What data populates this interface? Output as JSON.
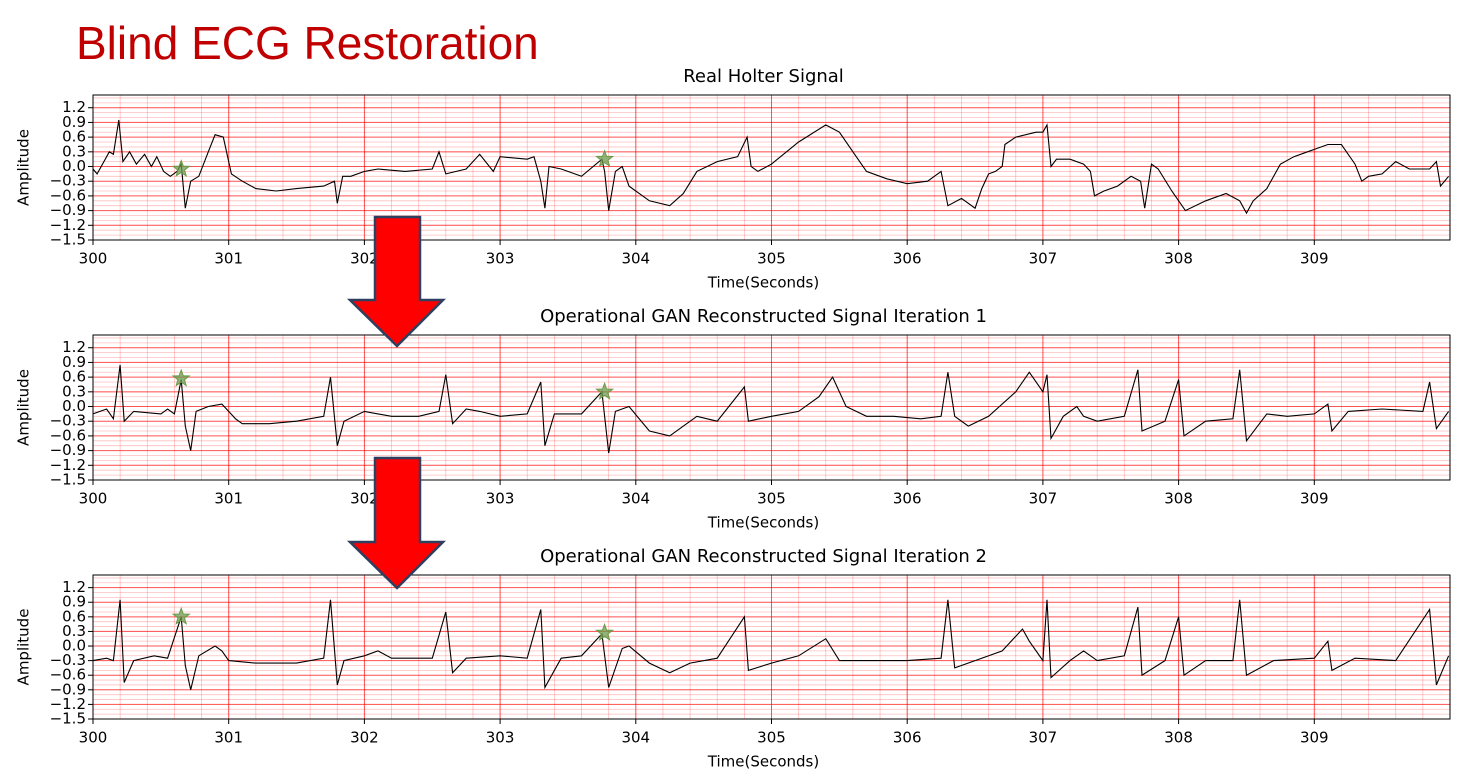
{
  "title": "Blind ECG Restoration",
  "chart_data": [
    {
      "type": "line",
      "title": "Real Holter Signal",
      "xlabel": "Time(Seconds)",
      "ylabel": "Amplitude",
      "xlim": [
        300,
        310
      ],
      "ylim": [
        -1.5,
        1.46
      ],
      "grid": true,
      "grid_color": "#ff0000",
      "xticks": [
        300,
        301,
        302,
        303,
        304,
        305,
        306,
        307,
        308,
        309
      ],
      "yticks": [
        {
          "value": -1.5,
          "label": "−1.5"
        },
        {
          "value": -1.2,
          "label": "−1.2"
        },
        {
          "value": -0.9,
          "label": "−0.9"
        },
        {
          "value": -0.6,
          "label": "−0.6"
        },
        {
          "value": -0.3,
          "label": "−0.3"
        },
        {
          "value": 0,
          "label": "0.0"
        },
        0.3,
        0.6,
        0.9,
        1.2
      ],
      "x": [
        300.0,
        300.03,
        300.08,
        300.12,
        300.15,
        300.19,
        300.22,
        300.27,
        300.32,
        300.38,
        300.43,
        300.47,
        300.52,
        300.57,
        300.62,
        300.65,
        300.68,
        300.72,
        300.78,
        300.85,
        300.9,
        300.96,
        301.02,
        301.1,
        301.2,
        301.35,
        301.5,
        301.7,
        301.78,
        301.8,
        301.84,
        301.9,
        302.0,
        302.1,
        302.3,
        302.5,
        302.55,
        302.6,
        302.75,
        302.85,
        302.95,
        303.0,
        303.2,
        303.25,
        303.3,
        303.33,
        303.36,
        303.45,
        303.6,
        303.75,
        303.77,
        303.8,
        303.85,
        303.9,
        303.95,
        304.1,
        304.25,
        304.35,
        304.45,
        304.6,
        304.75,
        304.82,
        304.85,
        304.9,
        305.0,
        305.2,
        305.4,
        305.5,
        305.6,
        305.7,
        305.85,
        306.0,
        306.15,
        306.25,
        306.3,
        306.4,
        306.5,
        306.55,
        306.6,
        306.65,
        306.7,
        306.72,
        306.8,
        306.95,
        307.0,
        307.03,
        307.06,
        307.1,
        307.2,
        307.3,
        307.35,
        307.38,
        307.45,
        307.55,
        307.65,
        307.72,
        307.75,
        307.8,
        307.85,
        307.95,
        308.05,
        308.2,
        308.35,
        308.45,
        308.5,
        308.55,
        308.65,
        308.75,
        308.85,
        308.95,
        309.0,
        309.1,
        309.2,
        309.3,
        309.35,
        309.4,
        309.5,
        309.6,
        309.7,
        309.85,
        309.9,
        309.93,
        309.99
      ],
      "series": [
        {
          "color": "#000000",
          "values": [
            -0.05,
            -0.15,
            0.1,
            0.3,
            0.25,
            0.95,
            0.1,
            0.3,
            0.05,
            0.25,
            0.0,
            0.2,
            -0.1,
            -0.2,
            -0.1,
            0.05,
            -0.85,
            -0.3,
            -0.2,
            0.3,
            0.65,
            0.6,
            -0.15,
            -0.3,
            -0.45,
            -0.5,
            -0.45,
            -0.4,
            -0.3,
            -0.75,
            -0.2,
            -0.2,
            -0.1,
            -0.05,
            -0.1,
            -0.05,
            0.3,
            -0.15,
            -0.05,
            0.25,
            -0.1,
            0.2,
            0.15,
            0.2,
            -0.3,
            -0.85,
            0.0,
            -0.05,
            -0.2,
            0.15,
            -0.1,
            -0.9,
            -0.1,
            0.0,
            -0.4,
            -0.7,
            -0.8,
            -0.55,
            -0.1,
            0.1,
            0.2,
            0.6,
            0.0,
            -0.1,
            0.05,
            0.5,
            0.85,
            0.7,
            0.3,
            -0.1,
            -0.25,
            -0.35,
            -0.3,
            -0.1,
            -0.8,
            -0.65,
            -0.85,
            -0.45,
            -0.15,
            -0.1,
            0.0,
            0.45,
            0.6,
            0.7,
            0.7,
            0.85,
            0.0,
            0.15,
            0.15,
            0.05,
            -0.1,
            -0.6,
            -0.5,
            -0.4,
            -0.2,
            -0.3,
            -0.85,
            0.05,
            -0.05,
            -0.5,
            -0.9,
            -0.7,
            -0.55,
            -0.7,
            -0.95,
            -0.7,
            -0.45,
            0.05,
            0.2,
            0.3,
            0.35,
            0.45,
            0.45,
            0.05,
            -0.3,
            -0.2,
            -0.15,
            0.1,
            -0.05,
            -0.05,
            0.1,
            -0.4,
            -0.2
          ]
        }
      ],
      "markers": {
        "x": [
          300.65,
          303.77
        ],
        "y": [
          -0.05,
          0.15
        ],
        "color": "#6b9a4b"
      }
    },
    {
      "type": "line",
      "title": "Operational GAN Reconstructed Signal Iteration 1",
      "xlabel": "Time(Seconds)",
      "ylabel": "Amplitude",
      "xlim": [
        300,
        310
      ],
      "ylim": [
        -1.5,
        1.46
      ],
      "grid": true,
      "grid_color": "#ff0000",
      "xticks": [
        300,
        301,
        302,
        303,
        304,
        305,
        306,
        307,
        308,
        309
      ],
      "yticks": [
        {
          "value": -1.5,
          "label": "−1.5"
        },
        {
          "value": -1.2,
          "label": "−1.2"
        },
        {
          "value": -0.9,
          "label": "−0.9"
        },
        {
          "value": -0.6,
          "label": "−0.6"
        },
        {
          "value": -0.3,
          "label": "−0.3"
        },
        {
          "value": 0,
          "label": "0.0"
        },
        0.3,
        0.6,
        0.9,
        1.2
      ],
      "x": [
        300.0,
        300.1,
        300.15,
        300.2,
        300.23,
        300.3,
        300.5,
        300.55,
        300.6,
        300.65,
        300.68,
        300.72,
        300.76,
        300.85,
        300.95,
        301.0,
        301.05,
        301.1,
        301.3,
        301.5,
        301.7,
        301.75,
        301.8,
        301.85,
        302.0,
        302.1,
        302.2,
        302.4,
        302.55,
        302.6,
        302.65,
        302.75,
        302.85,
        303.0,
        303.2,
        303.3,
        303.33,
        303.4,
        303.6,
        303.75,
        303.8,
        303.85,
        303.95,
        304.1,
        304.25,
        304.45,
        304.6,
        304.8,
        304.83,
        305.0,
        305.2,
        305.35,
        305.45,
        305.55,
        305.7,
        305.9,
        306.1,
        306.25,
        306.3,
        306.35,
        306.45,
        306.6,
        306.8,
        306.9,
        307.0,
        307.03,
        307.06,
        307.15,
        307.25,
        307.3,
        307.4,
        307.6,
        307.7,
        307.73,
        307.9,
        308.0,
        308.04,
        308.2,
        308.4,
        308.45,
        308.5,
        308.65,
        308.8,
        309.0,
        309.1,
        309.13,
        309.25,
        309.5,
        309.8,
        309.85,
        309.9,
        309.99
      ],
      "series": [
        {
          "color": "#000000",
          "values": [
            -0.15,
            -0.05,
            -0.25,
            0.85,
            -0.3,
            -0.1,
            -0.15,
            -0.05,
            -0.15,
            0.55,
            -0.4,
            -0.9,
            -0.1,
            0.0,
            0.05,
            -0.1,
            -0.25,
            -0.35,
            -0.35,
            -0.3,
            -0.2,
            0.6,
            -0.8,
            -0.3,
            -0.1,
            -0.15,
            -0.2,
            -0.2,
            -0.1,
            0.65,
            -0.35,
            -0.05,
            -0.1,
            -0.2,
            -0.15,
            0.5,
            -0.8,
            -0.15,
            -0.15,
            0.3,
            -0.95,
            -0.1,
            0.0,
            -0.5,
            -0.6,
            -0.2,
            -0.3,
            0.4,
            -0.3,
            -0.2,
            -0.1,
            0.2,
            0.6,
            0.0,
            -0.2,
            -0.2,
            -0.25,
            -0.2,
            0.7,
            -0.2,
            -0.4,
            -0.2,
            0.3,
            0.7,
            0.3,
            0.65,
            -0.65,
            -0.2,
            0.0,
            -0.2,
            -0.3,
            -0.2,
            0.75,
            -0.5,
            -0.3,
            0.55,
            -0.6,
            -0.3,
            -0.25,
            0.75,
            -0.7,
            -0.15,
            -0.2,
            -0.15,
            0.05,
            -0.5,
            -0.1,
            -0.05,
            -0.1,
            0.5,
            -0.45,
            -0.1
          ]
        }
      ],
      "markers": {
        "x": [
          300.65,
          303.77
        ],
        "y": [
          0.57,
          0.3
        ],
        "color": "#6b9a4b"
      }
    },
    {
      "type": "line",
      "title": "Operational GAN Reconstructed Signal Iteration 2",
      "xlabel": "Time(Seconds)",
      "ylabel": "Amplitude",
      "xlim": [
        300,
        310
      ],
      "ylim": [
        -1.5,
        1.46
      ],
      "grid": true,
      "grid_color": "#ff0000",
      "xticks": [
        300,
        301,
        302,
        303,
        304,
        305,
        306,
        307,
        308,
        309
      ],
      "yticks": [
        {
          "value": -1.5,
          "label": "−1.5"
        },
        {
          "value": -1.2,
          "label": "−1.2"
        },
        {
          "value": -0.9,
          "label": "−0.9"
        },
        {
          "value": -0.6,
          "label": "−0.6"
        },
        {
          "value": -0.3,
          "label": "−0.3"
        },
        {
          "value": 0,
          "label": "0.0"
        },
        0.3,
        0.6,
        0.9,
        1.2
      ],
      "x": [
        300.0,
        300.1,
        300.15,
        300.2,
        300.23,
        300.3,
        300.45,
        300.55,
        300.65,
        300.68,
        300.72,
        300.78,
        300.9,
        300.95,
        301.0,
        301.2,
        301.5,
        301.7,
        301.75,
        301.8,
        301.85,
        302.0,
        302.1,
        302.2,
        302.5,
        302.6,
        302.65,
        302.75,
        303.0,
        303.2,
        303.3,
        303.33,
        303.45,
        303.6,
        303.75,
        303.8,
        303.9,
        303.95,
        304.1,
        304.25,
        304.4,
        304.6,
        304.8,
        304.83,
        305.0,
        305.2,
        305.4,
        305.5,
        305.7,
        306.0,
        306.25,
        306.3,
        306.35,
        306.5,
        306.7,
        306.85,
        306.9,
        307.0,
        307.03,
        307.06,
        307.2,
        307.3,
        307.4,
        307.6,
        307.7,
        307.73,
        307.9,
        308.0,
        308.04,
        308.2,
        308.4,
        308.45,
        308.5,
        308.7,
        309.0,
        309.1,
        309.13,
        309.3,
        309.6,
        309.85,
        309.9,
        309.99
      ],
      "series": [
        {
          "color": "#000000",
          "values": [
            -0.3,
            -0.25,
            -0.3,
            0.95,
            -0.75,
            -0.3,
            -0.2,
            -0.25,
            0.6,
            -0.4,
            -0.9,
            -0.2,
            0.0,
            -0.1,
            -0.3,
            -0.35,
            -0.35,
            -0.25,
            0.95,
            -0.8,
            -0.3,
            -0.2,
            -0.1,
            -0.25,
            -0.25,
            0.7,
            -0.55,
            -0.25,
            -0.2,
            -0.25,
            0.75,
            -0.85,
            -0.25,
            -0.2,
            0.25,
            -0.85,
            -0.05,
            0.0,
            -0.35,
            -0.55,
            -0.35,
            -0.25,
            0.6,
            -0.5,
            -0.35,
            -0.2,
            0.15,
            -0.3,
            -0.3,
            -0.3,
            -0.25,
            0.95,
            -0.45,
            -0.3,
            -0.1,
            0.35,
            0.1,
            -0.3,
            0.95,
            -0.65,
            -0.3,
            -0.1,
            -0.3,
            -0.2,
            0.8,
            -0.6,
            -0.3,
            0.6,
            -0.6,
            -0.3,
            -0.3,
            0.95,
            -0.6,
            -0.3,
            -0.25,
            0.1,
            -0.5,
            -0.25,
            -0.3,
            0.75,
            -0.8,
            -0.2
          ]
        }
      ],
      "markers": {
        "x": [
          300.65,
          303.77
        ],
        "y": [
          0.6,
          0.27
        ],
        "color": "#6b9a4b"
      }
    }
  ]
}
